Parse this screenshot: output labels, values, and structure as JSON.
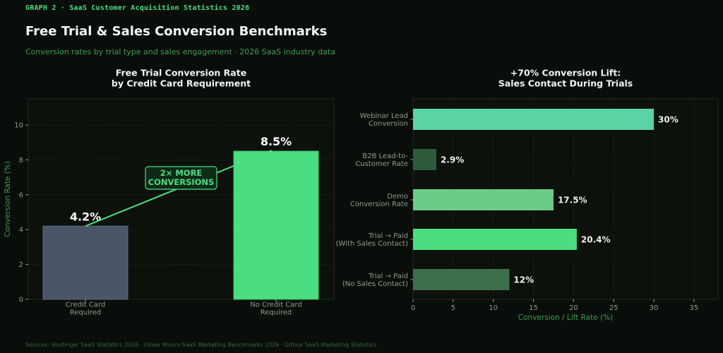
{
  "header": {
    "eyebrow": "GRAPH 2  ·  SaaS Customer Acquisition Statistics 2026",
    "title": "Free Trial & Sales Conversion Benchmarks",
    "subtitle": "Conversion rates by trial type and sales engagement  ·  2026 SaaS industry data"
  },
  "footer": {
    "sources": "Sources: Hostinger SaaS Statistics 2026 · Oliver Munro SaaS Marketing Benchmarks 2026 · Gitnux SaaS Marketing Statistics"
  },
  "colors": {
    "background": "#0a0e0a",
    "accent": "#4ade80",
    "slate": "#4b5568"
  },
  "chart_data": [
    {
      "type": "bar",
      "orientation": "vertical",
      "title_lines": [
        "Free Trial Conversion Rate",
        "by Credit Card Requirement"
      ],
      "categories": [
        [
          "Credit Card",
          "Required"
        ],
        [
          "No Credit Card",
          "Required"
        ]
      ],
      "values": [
        4.2,
        8.5
      ],
      "value_labels": [
        "4.2%",
        "8.5%"
      ],
      "colors": [
        "#4b5568",
        "#4ade80"
      ],
      "ylabel": "Conversion Rate (%)",
      "ylim": [
        0,
        11.5
      ],
      "yticks": [
        0,
        2,
        4,
        6,
        8,
        10
      ],
      "grid": true,
      "annotation": {
        "lines": [
          "2× MORE",
          "CONVERSIONS"
        ]
      }
    },
    {
      "type": "bar",
      "orientation": "horizontal",
      "title_lines": [
        "+70% Conversion Lift:",
        "Sales Contact During Trials"
      ],
      "categories": [
        [
          "Webinar Lead",
          "Conversion"
        ],
        [
          "B2B Lead-to-",
          "Customer Rate"
        ],
        [
          "Demo",
          "Conversion Rate"
        ],
        [
          "Trial → Paid",
          "(With Sales Contact)"
        ],
        [
          "Trial → Paid",
          "(No Sales Contact)"
        ]
      ],
      "values": [
        30,
        2.9,
        17.5,
        20.4,
        12
      ],
      "value_labels": [
        "30%",
        "2.9%",
        "17.5%",
        "20.4%",
        "12%"
      ],
      "colors": [
        "#5cd3a2",
        "#2c5a3a",
        "#6dcb8a",
        "#4ade80",
        "#3d6f4d"
      ],
      "xlabel": "Conversion / Lift Rate (%)",
      "xlim": [
        0,
        38
      ],
      "xticks": [
        0,
        5,
        10,
        15,
        20,
        25,
        30,
        35
      ],
      "grid": true
    }
  ]
}
